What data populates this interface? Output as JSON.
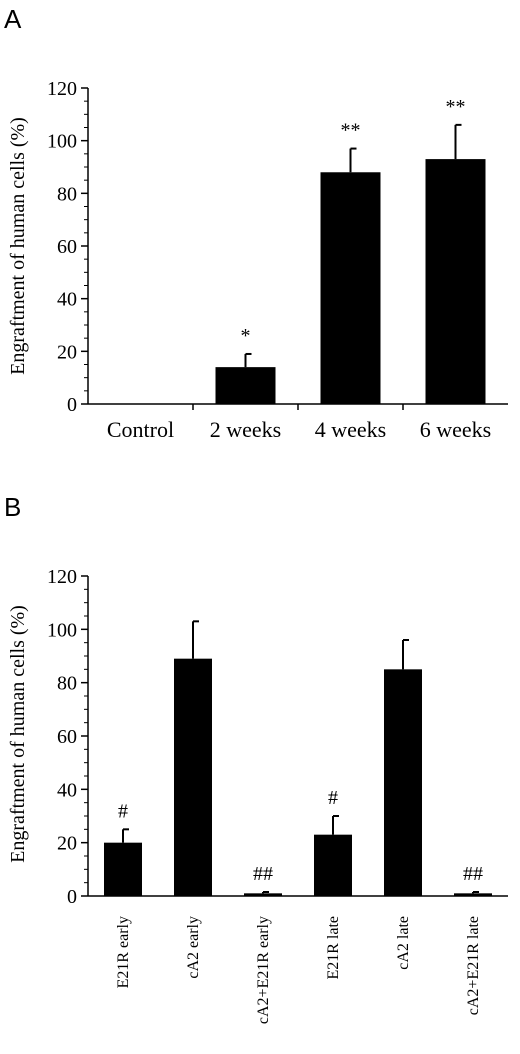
{
  "chart_data": [
    {
      "panel": "A",
      "type": "bar",
      "ylabel": "Engraftment of human cells (%)",
      "ylim": [
        0,
        120
      ],
      "yticks": [
        "0",
        "20",
        "40",
        "60",
        "80",
        "100",
        "120"
      ],
      "categories": [
        "Control",
        "2 weeks",
        "4 weeks",
        "6 weeks"
      ],
      "values": [
        0,
        14,
        88,
        93
      ],
      "errors": [
        0,
        5,
        9,
        13
      ],
      "annotations": [
        "",
        "*",
        "**",
        "**"
      ],
      "bar_color": "#000000"
    },
    {
      "panel": "B",
      "type": "bar",
      "ylabel": "Engraftment of human cells (%)",
      "ylim": [
        0,
        120
      ],
      "yticks": [
        "0",
        "20",
        "40",
        "60",
        "80",
        "100",
        "120"
      ],
      "categories": [
        "E21R early",
        "cA2 early",
        "cA2+E21R early",
        "E21R late",
        "cA2 late",
        "cA2+E21R late"
      ],
      "values": [
        20,
        89,
        1,
        23,
        85,
        1
      ],
      "errors": [
        5,
        14,
        0.5,
        7,
        11,
        0.5
      ],
      "annotations": [
        "#",
        "",
        "##",
        "#",
        "",
        "##"
      ],
      "bar_color": "#000000"
    }
  ]
}
